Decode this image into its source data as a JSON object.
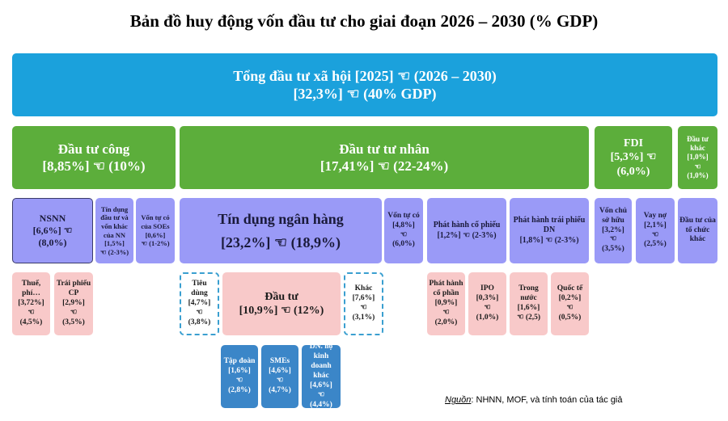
{
  "title": "Bản đồ huy động vốn đầu tư cho giai đoạn 2026 – 2030 (% GDP)",
  "nodes": [
    {
      "lines": [
        "Tổng đầu tư xã hội [2025] ☜ (2026 – 2030)",
        "[32,3%] ☜ (40% GDP)"
      ]
    },
    {
      "lines": [
        "Đầu tư công",
        "[8,85%] ☜ (10%)"
      ]
    },
    {
      "lines": [
        "Đầu tư tư nhân",
        "[17,41%] ☜ (22-24%)"
      ]
    },
    {
      "lines": [
        "FDI",
        "[5,3%] ☜",
        "(6,0%)"
      ]
    },
    {
      "lines": [
        "Đầu tư khác",
        "[1,0%]",
        "☜",
        "(1,0%)"
      ]
    },
    {
      "lines": [
        "NSNN",
        "[6,6%] ☜",
        "(8,0%)"
      ]
    },
    {
      "lines": [
        "Tín dụng đầu tư và vốn khác của NN",
        "[1,5%]",
        "☜ (2-3%)"
      ]
    },
    {
      "lines": [
        "Vốn tự có của SOEs",
        "[0,6%]",
        "☜ (1-2%)"
      ]
    },
    {
      "lines": [
        "Tín dụng ngân hàng",
        "[23,2%] ☜ (18,9%)"
      ]
    },
    {
      "lines": [
        "Vốn tự có",
        "[4,8%]",
        "☜",
        "(6,0%)"
      ]
    },
    {
      "lines": [
        "Phát hành cổ phiếu",
        "[1,2%] ☜ (2-3%)"
      ]
    },
    {
      "lines": [
        "Phát hành trái phiếu DN",
        "[1,8%] ☜ (2-3%)"
      ]
    },
    {
      "lines": [
        "Vốn chủ sở hữu",
        "[3,2%]",
        "☜",
        "(3,5%)"
      ]
    },
    {
      "lines": [
        "Vay nợ",
        "[2,1%]",
        "☜",
        "(2,5%)"
      ]
    },
    {
      "lines": [
        "Đầu tư của tổ chức khác"
      ]
    },
    {
      "lines": [
        "Thuế, phí…",
        "[3,72%]",
        "☜",
        "(4,5%)"
      ]
    },
    {
      "lines": [
        "Trái phiếu CP",
        "[2,9%]",
        "☜",
        "(3,5%)"
      ]
    },
    {
      "lines": [
        "Tiêu dùng",
        "[4,7%]",
        "☜",
        "(3,8%)"
      ]
    },
    {
      "lines": [
        "Đầu tư",
        "[10,9%] ☜ (12%)"
      ]
    },
    {
      "lines": [
        "Khác",
        "[7,6%]",
        "☜",
        "(3,1%)"
      ]
    },
    {
      "lines": [
        "Phát hành cổ phần",
        "[0,9%]",
        "☜",
        "(2,0%)"
      ]
    },
    {
      "lines": [
        "IPO",
        "[0,3%]",
        "☜",
        "(1,0%)"
      ]
    },
    {
      "lines": [
        "Trong nước",
        "[1,6%]",
        "☜ (2,5)"
      ]
    },
    {
      "lines": [
        "Quốc tế",
        "[0,2%]",
        "☜",
        "(0,5%)"
      ]
    },
    {
      "lines": [
        "Tập đoàn",
        "[1,6%]",
        "☜",
        "(2,8%)"
      ]
    },
    {
      "lines": [
        "SMEs",
        "[4,6%]",
        "☜",
        "(4,7%)"
      ]
    },
    {
      "lines": [
        "DN. hộ kinh doanh khác",
        "[4,6%]",
        "☜",
        "(4,4%)"
      ]
    }
  ],
  "source": {
    "label": "Nguồn",
    "text": ": NHNN, MOF, và tính toán của tác giả"
  }
}
